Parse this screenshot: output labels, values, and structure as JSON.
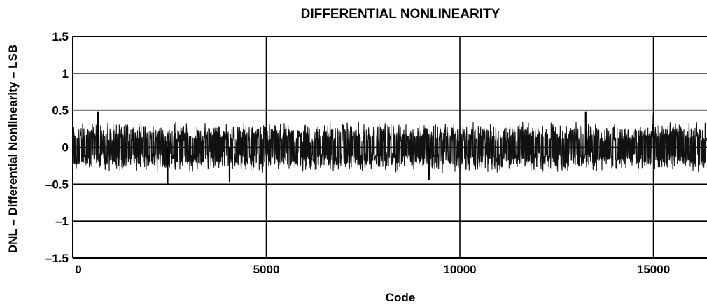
{
  "chart_data": {
    "type": "line",
    "title": "DIFFERENTIAL NONLINEARITY",
    "xlabel": "Code",
    "ylabel": "DNL – Differential Nonlinearity – LSB",
    "xlim": [
      0,
      16383
    ],
    "ylim": [
      -1.5,
      1.5
    ],
    "x_ticks": [
      0,
      5000,
      10000,
      15000
    ],
    "x_tick_labels": [
      "0",
      "5000",
      "10000",
      "15000"
    ],
    "y_ticks": [
      1.5,
      1,
      0.5,
      0,
      -0.5,
      -1,
      -1.5
    ],
    "y_tick_labels": [
      "1.5",
      "1",
      "0.5",
      "0",
      "–0.5",
      "–1",
      "–1.5"
    ],
    "grid": true,
    "series": [
      {
        "values_description_free": true,
        "typical_range": [
          -0.35,
          0.35
        ],
        "spikes": [
          {
            "x": 650,
            "y": 0.48
          },
          {
            "x": 2450,
            "y": -0.5
          },
          {
            "x": 4050,
            "y": -0.47
          },
          {
            "x": 9200,
            "y": -0.45
          },
          {
            "x": 13250,
            "y": 0.48
          },
          {
            "x": 15000,
            "y": 0.44
          }
        ],
        "points": [
          [
            0,
            0.25
          ],
          [
            200,
            -0.3
          ],
          [
            400,
            0.28
          ],
          [
            650,
            0.48
          ],
          [
            800,
            -0.42
          ],
          [
            1000,
            0.3
          ],
          [
            1500,
            -0.35
          ],
          [
            2000,
            0.33
          ],
          [
            2450,
            -0.5
          ],
          [
            3000,
            0.3
          ],
          [
            3500,
            -0.33
          ],
          [
            4050,
            -0.47
          ],
          [
            4500,
            0.32
          ],
          [
            5000,
            0.4
          ],
          [
            5500,
            -0.35
          ],
          [
            6000,
            0.32
          ],
          [
            6500,
            -0.32
          ],
          [
            7000,
            0.3
          ],
          [
            7500,
            -0.33
          ],
          [
            8000,
            0.32
          ],
          [
            8500,
            -0.34
          ],
          [
            9200,
            -0.45
          ],
          [
            9500,
            0.32
          ],
          [
            10000,
            0.36
          ],
          [
            10500,
            -0.34
          ],
          [
            11000,
            0.3
          ],
          [
            11500,
            -0.33
          ],
          [
            12000,
            0.32
          ],
          [
            12500,
            -0.36
          ],
          [
            13250,
            0.48
          ],
          [
            13300,
            -0.4
          ],
          [
            14000,
            0.33
          ],
          [
            14500,
            -0.35
          ],
          [
            15000,
            0.44
          ],
          [
            15500,
            -0.36
          ],
          [
            16000,
            0.38
          ],
          [
            16383,
            -0.38
          ]
        ]
      }
    ]
  }
}
